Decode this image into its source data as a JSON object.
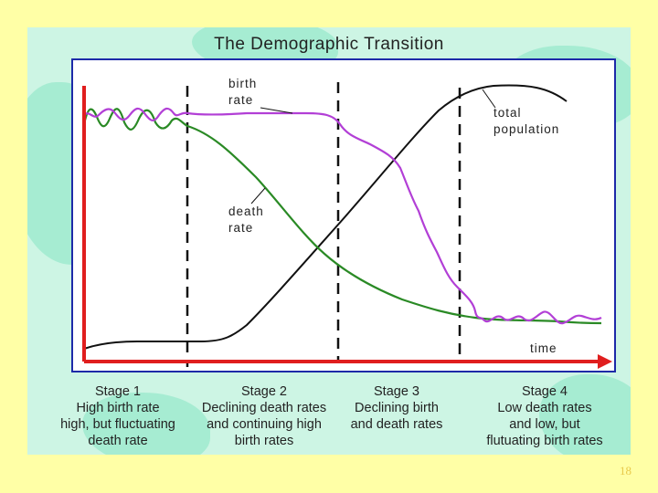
{
  "title": "The Demographic Transition",
  "labels": {
    "birth_rate": [
      "birth",
      "rate"
    ],
    "death_rate": [
      "death",
      "rate"
    ],
    "total_population": [
      "total",
      "population"
    ],
    "time": "time"
  },
  "stages": [
    {
      "title": "Stage 1",
      "lines": [
        "High birth rate",
        "high, but fluctuating",
        "death rate"
      ]
    },
    {
      "title": "Stage 2",
      "lines": [
        "Declining death rates",
        "and continuing high",
        "birth rates"
      ]
    },
    {
      "title": "Stage 3",
      "lines": [
        "Declining birth",
        "and death rates"
      ]
    },
    {
      "title": "Stage 4",
      "lines": [
        "Low death rates",
        "and low, but",
        "flutuating birth rates"
      ]
    }
  ],
  "page_number": "18",
  "page_number_outer": "18",
  "colors": {
    "birth_rate": "#b23fd6",
    "death_rate": "#2a8a25",
    "total_population": "#111111",
    "axes": "#e01e1e",
    "frame": "#1d2aa8"
  }
}
